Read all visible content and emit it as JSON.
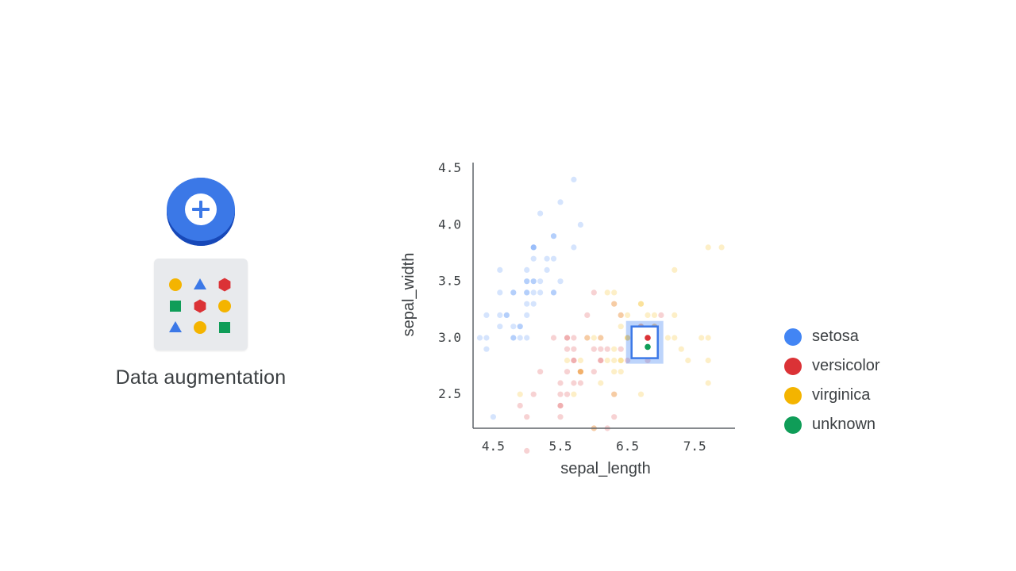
{
  "caption": "Data augmentation",
  "icons": {
    "badge": "plus-icon",
    "card": [
      "circle",
      "triangle",
      "hexagon",
      "square",
      "hexagon",
      "circle",
      "triangle",
      "circle",
      "square"
    ],
    "card_colors": [
      "#f4b400",
      "#3b78e7",
      "#db3236",
      "#0f9d58",
      "#db3236",
      "#f4b400",
      "#3b78e7",
      "#f4b400",
      "#0f9d58"
    ]
  },
  "colors": {
    "setosa": "#4285f4",
    "versicolor": "#db3236",
    "virginica": "#f4b400",
    "unknown": "#0f9d58"
  },
  "legend": [
    {
      "label": "setosa",
      "color": "#4285f4"
    },
    {
      "label": "versicolor",
      "color": "#db3236"
    },
    {
      "label": "virginica",
      "color": "#f4b400"
    },
    {
      "label": "unknown",
      "color": "#0f9d58"
    }
  ],
  "chart_data": {
    "type": "scatter",
    "xlabel": "sepal_length",
    "ylabel": "sepal_width",
    "xlim": [
      4.2,
      8.1
    ],
    "ylim": [
      2.2,
      4.55
    ],
    "xticks": [
      "4.5",
      "5.5",
      "6.5",
      "7.5"
    ],
    "yticks": [
      "4.5",
      "4.0",
      "3.5",
      "3.0",
      "2.5"
    ],
    "grid": false,
    "legend_position": "right",
    "series": [
      {
        "name": "setosa",
        "points": [
          [
            5.1,
            3.5
          ],
          [
            4.9,
            3.0
          ],
          [
            4.7,
            3.2
          ],
          [
            4.6,
            3.1
          ],
          [
            5.0,
            3.6
          ],
          [
            5.4,
            3.9
          ],
          [
            4.6,
            3.4
          ],
          [
            5.0,
            3.4
          ],
          [
            4.4,
            2.9
          ],
          [
            4.9,
            3.1
          ],
          [
            5.4,
            3.7
          ],
          [
            4.8,
            3.4
          ],
          [
            4.8,
            3.0
          ],
          [
            4.3,
            3.0
          ],
          [
            5.8,
            4.0
          ],
          [
            5.7,
            4.4
          ],
          [
            5.4,
            3.9
          ],
          [
            5.1,
            3.5
          ],
          [
            5.7,
            3.8
          ],
          [
            5.1,
            3.8
          ],
          [
            5.4,
            3.4
          ],
          [
            5.1,
            3.7
          ],
          [
            4.6,
            3.6
          ],
          [
            5.1,
            3.3
          ],
          [
            4.8,
            3.4
          ],
          [
            5.0,
            3.0
          ],
          [
            5.0,
            3.4
          ],
          [
            5.2,
            3.5
          ],
          [
            5.2,
            3.4
          ],
          [
            4.7,
            3.2
          ],
          [
            4.8,
            3.1
          ],
          [
            5.4,
            3.4
          ],
          [
            5.2,
            4.1
          ],
          [
            5.5,
            4.2
          ],
          [
            4.9,
            3.1
          ],
          [
            5.0,
            3.2
          ],
          [
            5.5,
            3.5
          ],
          [
            4.4,
            3.0
          ],
          [
            5.1,
            3.4
          ],
          [
            5.0,
            3.5
          ],
          [
            4.5,
            2.3
          ],
          [
            4.4,
            3.2
          ],
          [
            5.0,
            3.5
          ],
          [
            5.1,
            3.8
          ],
          [
            4.8,
            3.0
          ],
          [
            5.1,
            3.8
          ],
          [
            4.6,
            3.2
          ],
          [
            5.3,
            3.7
          ],
          [
            5.0,
            3.3
          ],
          [
            5.3,
            3.6
          ]
        ]
      },
      {
        "name": "versicolor",
        "points": [
          [
            7.0,
            3.2
          ],
          [
            6.4,
            3.2
          ],
          [
            6.9,
            3.1
          ],
          [
            5.5,
            2.3
          ],
          [
            6.5,
            2.8
          ],
          [
            5.7,
            2.8
          ],
          [
            6.3,
            3.3
          ],
          [
            4.9,
            2.4
          ],
          [
            6.6,
            2.9
          ],
          [
            5.2,
            2.7
          ],
          [
            5.0,
            2.0
          ],
          [
            5.9,
            3.0
          ],
          [
            6.0,
            2.2
          ],
          [
            6.1,
            2.9
          ],
          [
            5.6,
            2.9
          ],
          [
            6.7,
            3.1
          ],
          [
            5.6,
            3.0
          ],
          [
            5.8,
            2.7
          ],
          [
            6.2,
            2.2
          ],
          [
            5.6,
            2.5
          ],
          [
            5.9,
            3.2
          ],
          [
            6.1,
            2.8
          ],
          [
            6.3,
            2.5
          ],
          [
            6.1,
            2.8
          ],
          [
            6.4,
            2.9
          ],
          [
            6.6,
            3.0
          ],
          [
            6.8,
            2.8
          ],
          [
            6.7,
            3.0
          ],
          [
            6.0,
            2.9
          ],
          [
            5.7,
            2.6
          ],
          [
            5.5,
            2.4
          ],
          [
            5.5,
            2.4
          ],
          [
            5.8,
            2.7
          ],
          [
            6.0,
            2.7
          ],
          [
            5.4,
            3.0
          ],
          [
            6.0,
            3.4
          ],
          [
            6.7,
            3.1
          ],
          [
            6.3,
            2.3
          ],
          [
            5.6,
            3.0
          ],
          [
            5.5,
            2.5
          ],
          [
            5.5,
            2.6
          ],
          [
            6.1,
            3.0
          ],
          [
            5.8,
            2.6
          ],
          [
            5.0,
            2.3
          ],
          [
            5.6,
            2.7
          ],
          [
            5.7,
            3.0
          ],
          [
            5.7,
            2.9
          ],
          [
            6.2,
            2.9
          ],
          [
            5.1,
            2.5
          ],
          [
            5.7,
            2.8
          ]
        ]
      },
      {
        "name": "virginica",
        "points": [
          [
            6.3,
            3.3
          ],
          [
            5.8,
            2.7
          ],
          [
            7.1,
            3.0
          ],
          [
            6.3,
            2.9
          ],
          [
            6.5,
            3.0
          ],
          [
            7.6,
            3.0
          ],
          [
            4.9,
            2.5
          ],
          [
            7.3,
            2.9
          ],
          [
            6.7,
            2.5
          ],
          [
            7.2,
            3.6
          ],
          [
            6.5,
            3.2
          ],
          [
            6.4,
            2.7
          ],
          [
            6.8,
            3.0
          ],
          [
            5.7,
            2.5
          ],
          [
            5.8,
            2.8
          ],
          [
            6.4,
            3.2
          ],
          [
            6.5,
            3.0
          ],
          [
            7.7,
            3.8
          ],
          [
            7.7,
            2.6
          ],
          [
            6.0,
            2.2
          ],
          [
            6.9,
            3.2
          ],
          [
            5.6,
            2.8
          ],
          [
            7.7,
            2.8
          ],
          [
            6.3,
            2.7
          ],
          [
            6.7,
            3.3
          ],
          [
            7.2,
            3.2
          ],
          [
            6.2,
            2.8
          ],
          [
            6.1,
            3.0
          ],
          [
            6.4,
            2.8
          ],
          [
            7.2,
            3.0
          ],
          [
            7.4,
            2.8
          ],
          [
            7.9,
            3.8
          ],
          [
            6.4,
            2.8
          ],
          [
            6.3,
            2.8
          ],
          [
            6.1,
            2.6
          ],
          [
            7.7,
            3.0
          ],
          [
            6.3,
            3.4
          ],
          [
            6.4,
            3.1
          ],
          [
            6.0,
            3.0
          ],
          [
            6.9,
            3.1
          ],
          [
            6.7,
            3.1
          ],
          [
            6.9,
            3.1
          ],
          [
            5.8,
            2.7
          ],
          [
            6.8,
            3.2
          ],
          [
            6.7,
            3.3
          ],
          [
            6.7,
            3.0
          ],
          [
            6.3,
            2.5
          ],
          [
            6.5,
            3.0
          ],
          [
            6.2,
            3.4
          ],
          [
            5.9,
            3.0
          ]
        ]
      }
    ],
    "highlight": {
      "box_x": [
        6.56,
        6.95
      ],
      "box_y": [
        2.82,
        3.1
      ],
      "points": [
        {
          "class": "versicolor",
          "x": 6.8,
          "y": 3.0
        },
        {
          "class": "unknown",
          "x": 6.8,
          "y": 2.92
        }
      ]
    }
  }
}
